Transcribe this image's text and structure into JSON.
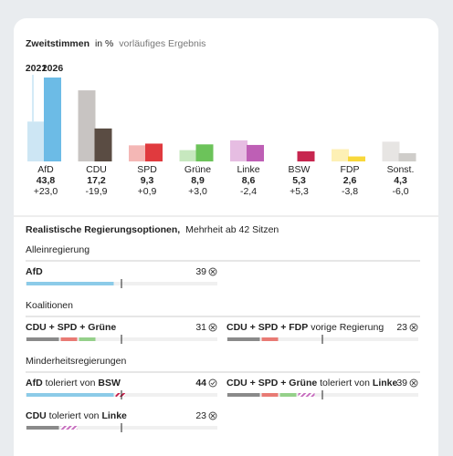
{
  "chart_data": {
    "type": "bar",
    "title": "Zweitstimmen",
    "unit": "in %",
    "subtitle": "vorläufiges Ergebnis",
    "categories": [
      "AfD",
      "CDU",
      "SPD",
      "Grüne",
      "Linke",
      "BSW",
      "FDP",
      "Sonst."
    ],
    "series": [
      {
        "name": "2021",
        "color": "#a9d6ef",
        "colors": [
          "#cde6f4",
          "#c8c4c2",
          "#f4b7b5",
          "#c7e8bf",
          "#e6bde2",
          "#f0b3c3",
          "#fdf0b5",
          "#e7e5e3"
        ],
        "values": [
          20.8,
          37.1,
          8.4,
          5.9,
          11.0,
          0,
          6.4,
          10.3
        ]
      },
      {
        "name": "2026",
        "color": "#6cbbe6",
        "colors": [
          "#6cbbe6",
          "#5a4c43",
          "#e03a3e",
          "#6cc35a",
          "#be5fb5",
          "#c7264f",
          "#f8d83b",
          "#cfcdca"
        ],
        "values": [
          43.8,
          17.2,
          9.3,
          8.9,
          8.6,
          5.3,
          2.6,
          4.3
        ],
        "value_labels": [
          "43,8",
          "17,2",
          "9,3",
          "8,9",
          "8,6",
          "5,3",
          "2,6",
          "4,3"
        ]
      }
    ],
    "change_labels": [
      "+23,0",
      "-19,9",
      "+0,9",
      "+3,0",
      "-2,4",
      "+5,3",
      "-3,8",
      "-6,0"
    ]
  },
  "options": {
    "title": "Realistische Regierungsoptionen,",
    "majority": {
      "value": 42,
      "label": "Mehrheit ab 42 Sitzen"
    },
    "groups": [
      {
        "title": "Alleinregierung",
        "options": [
          {
            "label_parts": [
              {
                "text": "AfD",
                "bold": true
              }
            ],
            "seats": 39,
            "segments": [
              {
                "seats": 39,
                "color": "#8ccbe8"
              }
            ]
          }
        ]
      },
      {
        "title": "Koalitionen",
        "options": [
          {
            "label_parts": [
              {
                "text": "CDU + SPD + Grüne",
                "bold": true
              }
            ],
            "seats": 31,
            "segments": [
              {
                "seats": 15,
                "color": "#8a8a8a"
              },
              {
                "seats": 8,
                "color": "#e87a74"
              },
              {
                "seats": 8,
                "color": "#95d08a"
              }
            ]
          },
          {
            "label_parts": [
              {
                "text": "CDU + SPD + FDP",
                "bold": true
              },
              {
                "text": " vorige Regierung",
                "bold": false
              }
            ],
            "seats": 23,
            "segments": [
              {
                "seats": 15,
                "color": "#8a8a8a"
              },
              {
                "seats": 8,
                "color": "#e87a74"
              }
            ]
          }
        ]
      },
      {
        "title": "Minderheitsregierungen",
        "options": [
          {
            "label_parts": [
              {
                "text": "AfD",
                "bold": true
              },
              {
                "text": " toleriert von ",
                "bold": false
              },
              {
                "text": "BSW",
                "bold": true
              }
            ],
            "seats": 44,
            "segments": [
              {
                "seats": 39,
                "color": "#8ccbe8"
              },
              {
                "seats": 5,
                "color": "#c7264f",
                "tolerating": true
              }
            ]
          },
          {
            "label_parts": [
              {
                "text": "CDU + SPD + Grüne",
                "bold": true
              },
              {
                "text": " toleriert von ",
                "bold": false
              },
              {
                "text": "Linke",
                "bold": true
              }
            ],
            "seats": 39,
            "segments": [
              {
                "seats": 15,
                "color": "#8a8a8a"
              },
              {
                "seats": 8,
                "color": "#e87a74"
              },
              {
                "seats": 8,
                "color": "#95d08a"
              },
              {
                "seats": 8,
                "color": "#c76fbf",
                "tolerating": true
              }
            ]
          },
          {
            "label_parts": [
              {
                "text": "CDU",
                "bold": true
              },
              {
                "text": " toleriert von ",
                "bold": false
              },
              {
                "text": "Linke",
                "bold": true
              }
            ],
            "seats": 23,
            "segments": [
              {
                "seats": 15,
                "color": "#8a8a8a"
              },
              {
                "seats": 8,
                "color": "#c76fbf",
                "tolerating": true
              }
            ]
          }
        ]
      }
    ]
  }
}
